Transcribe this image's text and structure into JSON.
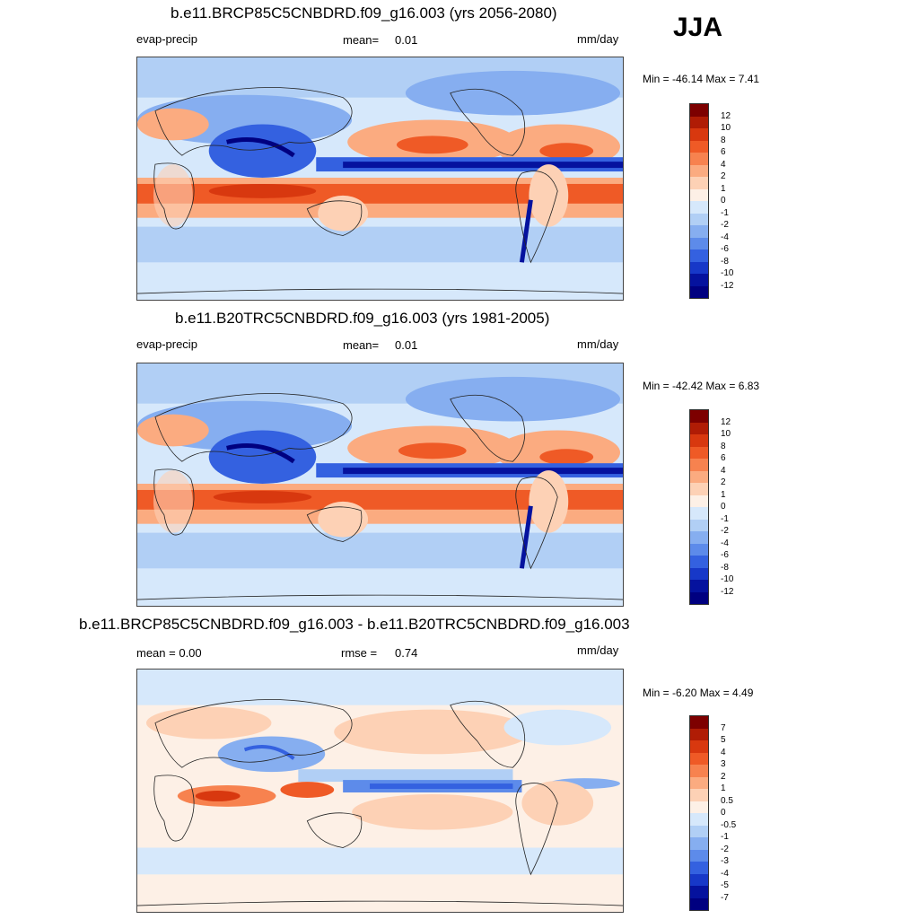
{
  "season": "JJA",
  "panels": [
    {
      "title": "b.e11.BRCP85C5CNBDRD.f09_g16.003 (yrs 2056-2080)",
      "left_label": "evap-precip",
      "center_label": "mean=",
      "center_value": "0.01",
      "units": "mm/day",
      "minmax": "Min = -46.14 Max =   7.41",
      "colorbar_labels": [
        "12",
        "10",
        "8",
        "6",
        "4",
        "2",
        "1",
        "0",
        "-1",
        "-2",
        "-4",
        "-6",
        "-8",
        "-10",
        "-12"
      ]
    },
    {
      "title": "b.e11.B20TRC5CNBDRD.f09_g16.003 (yrs 1981-2005)",
      "left_label": "evap-precip",
      "center_label": "mean=",
      "center_value": "0.01",
      "units": "mm/day",
      "minmax": "Min = -42.42 Max =   6.83",
      "colorbar_labels": [
        "12",
        "10",
        "8",
        "6",
        "4",
        "2",
        "1",
        "0",
        "-1",
        "-2",
        "-4",
        "-6",
        "-8",
        "-10",
        "-12"
      ]
    },
    {
      "title": "b.e11.BRCP85C5CNBDRD.f09_g16.003 - b.e11.B20TRC5CNBDRD.f09_g16.003",
      "left_label": "mean =   0.00",
      "center_label": "rmse =",
      "center_value": "0.74",
      "units": "mm/day",
      "minmax": "Min =  -6.20 Max =   4.49",
      "colorbar_labels": [
        "7",
        "5",
        "4",
        "3",
        "2",
        "1",
        "0.5",
        "0",
        "-0.5",
        "-1",
        "-2",
        "-3",
        "-4",
        "-5",
        "-7"
      ]
    }
  ],
  "colors": {
    "ramp": [
      "#7d0000",
      "#b01c05",
      "#d8380f",
      "#ef5a26",
      "#f7824f",
      "#fbab80",
      "#fdd1b5",
      "#fdf0e6",
      "#d6e8fb",
      "#b1cff5",
      "#86aef0",
      "#5d8bea",
      "#3461e0",
      "#1738c8",
      "#05129e",
      "#000080"
    ]
  }
}
